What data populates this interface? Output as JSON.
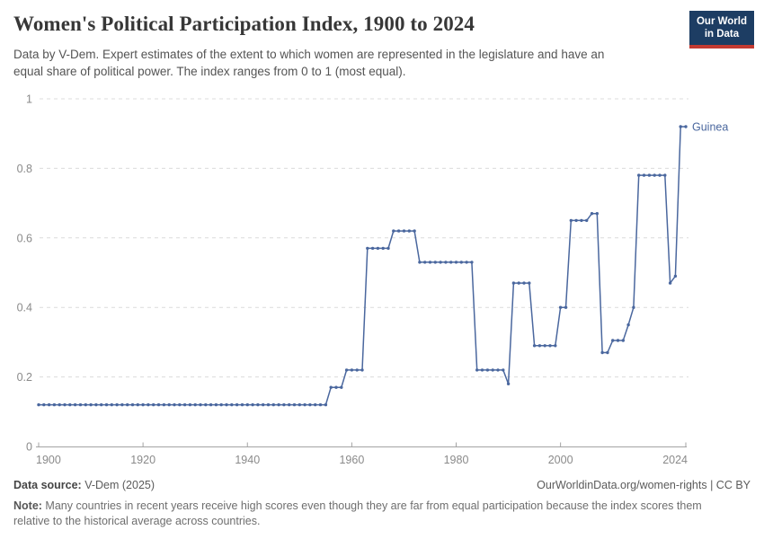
{
  "header": {
    "title": "Women's Political Participation Index, 1900 to 2024",
    "subtitle_line1": "Data by V-Dem. Expert estimates of the extent to which women are represented in the legislature and have an",
    "subtitle_line2": "equal share of political power. The index ranges from 0 to 1 (most equal).",
    "logo_line1": "Our World",
    "logo_line2": "in Data"
  },
  "colors": {
    "series_blue": "#4a679e",
    "logo_navy": "#1d3d63",
    "logo_red": "#c43a31",
    "gridline": "#dcdcdc",
    "axis": "#a3a3a3",
    "tick_label": "#8a8a8a"
  },
  "chart_data": {
    "type": "line",
    "title": "Women's Political Participation Index, 1900 to 2024",
    "xlabel": "",
    "ylabel": "",
    "xlim": [
      1900,
      2024
    ],
    "ylim": [
      0,
      1
    ],
    "x_ticks": [
      1900,
      1920,
      1940,
      1960,
      1980,
      2000,
      2024
    ],
    "y_ticks": [
      0,
      0.2,
      0.4,
      0.6,
      0.8,
      1
    ],
    "grid": "dashed-horizontal",
    "legend": "end-of-line-label",
    "series": [
      {
        "name": "Guinea",
        "color": "#4a679e",
        "values_by_period": [
          {
            "start": 1900,
            "end": 1955,
            "value": 0.12
          },
          {
            "start": 1956,
            "end": 1958,
            "value": 0.17
          },
          {
            "start": 1959,
            "end": 1962,
            "value": 0.22
          },
          {
            "start": 1963,
            "end": 1967,
            "value": 0.57
          },
          {
            "start": 1968,
            "end": 1972,
            "value": 0.62
          },
          {
            "start": 1973,
            "end": 1983,
            "value": 0.53
          },
          {
            "start": 1984,
            "end": 1989,
            "value": 0.22
          },
          {
            "start": 1990,
            "end": 1990,
            "value": 0.18
          },
          {
            "start": 1991,
            "end": 1994,
            "value": 0.47
          },
          {
            "start": 1995,
            "end": 1999,
            "value": 0.29
          },
          {
            "start": 2000,
            "end": 2001,
            "value": 0.4
          },
          {
            "start": 2002,
            "end": 2005,
            "value": 0.65
          },
          {
            "start": 2006,
            "end": 2007,
            "value": 0.67
          },
          {
            "start": 2008,
            "end": 2009,
            "value": 0.27
          },
          {
            "start": 2010,
            "end": 2012,
            "value": 0.305
          },
          {
            "start": 2013,
            "end": 2013,
            "value": 0.35
          },
          {
            "start": 2014,
            "end": 2014,
            "value": 0.4
          },
          {
            "start": 2015,
            "end": 2020,
            "value": 0.78
          },
          {
            "start": 2021,
            "end": 2021,
            "value": 0.47
          },
          {
            "start": 2022,
            "end": 2022,
            "value": 0.49
          },
          {
            "start": 2023,
            "end": 2024,
            "value": 0.92
          }
        ]
      }
    ]
  },
  "footer": {
    "source_label": "Data source:",
    "source_value": " V-Dem (2025)",
    "link": "OurWorldinData.org/women-rights | CC BY",
    "note_label": "Note:",
    "note_line1": " Many countries in recent years receive high scores even though they are far from equal participation because the index scores them",
    "note_line2": "relative to the historical average across countries."
  }
}
